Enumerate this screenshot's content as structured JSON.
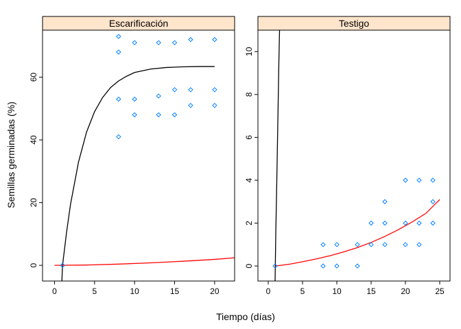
{
  "chart_data": {
    "type": "scatter",
    "xlabel": "Tiempo (días)",
    "ylabel": "Semillas germinadas (%)",
    "colors": {
      "points": "#0080ff",
      "red_curve": "#ff0000",
      "black_curve": "#000000",
      "strip": "#ffe5cc"
    },
    "panels": [
      {
        "strip": "Escarificación",
        "xlim": [
          -1.5,
          22.5
        ],
        "ylim": [
          -5,
          75
        ],
        "xticks": [
          0,
          5,
          10,
          15,
          20
        ],
        "yticks": [
          0,
          20,
          40,
          60
        ],
        "points": [
          [
            1,
            0
          ],
          [
            8,
            73
          ],
          [
            8,
            68
          ],
          [
            8,
            53
          ],
          [
            8,
            41
          ],
          [
            10,
            71
          ],
          [
            10,
            53
          ],
          [
            10,
            48
          ],
          [
            13,
            71
          ],
          [
            13,
            54
          ],
          [
            13,
            48
          ],
          [
            15,
            71
          ],
          [
            15,
            56
          ],
          [
            15,
            48
          ],
          [
            17,
            72
          ],
          [
            17,
            56
          ],
          [
            17,
            51
          ],
          [
            20,
            72
          ],
          [
            20,
            56
          ],
          [
            20,
            51
          ]
        ],
        "black_curve": {
          "x": [
            0.9,
            1.0,
            1.5,
            2,
            3,
            4,
            5,
            6,
            7,
            8,
            9,
            10,
            12,
            14,
            16,
            18,
            20
          ],
          "y": [
            -6,
            0,
            10.5,
            19.5,
            33,
            42.5,
            49,
            53.5,
            56.7,
            58.8,
            60.3,
            61.5,
            62.6,
            63.1,
            63.3,
            63.4,
            63.4
          ]
        },
        "red_curve": {
          "x": [
            0,
            4,
            8,
            12,
            16,
            20,
            22.5
          ],
          "y": [
            0,
            0.1,
            0.4,
            0.8,
            1.3,
            1.9,
            2.4
          ]
        }
      },
      {
        "strip": "Testigo",
        "xlim": [
          -1.5,
          26.5
        ],
        "ylim": [
          -0.7,
          11
        ],
        "xticks": [
          0,
          5,
          10,
          15,
          20,
          25
        ],
        "yticks": [
          0,
          2,
          4,
          6,
          8,
          10
        ],
        "points": [
          [
            1,
            0
          ],
          [
            8,
            1
          ],
          [
            8,
            0
          ],
          [
            10,
            1
          ],
          [
            10,
            0
          ],
          [
            13,
            1
          ],
          [
            13,
            0
          ],
          [
            15,
            2
          ],
          [
            15,
            1
          ],
          [
            17,
            3
          ],
          [
            17,
            2
          ],
          [
            17,
            1
          ],
          [
            20,
            4
          ],
          [
            20,
            2
          ],
          [
            20,
            1
          ],
          [
            22,
            4
          ],
          [
            22,
            2
          ],
          [
            22,
            1
          ],
          [
            24,
            4
          ],
          [
            24,
            3
          ],
          [
            24,
            2
          ]
        ],
        "black_curve": {
          "x": [
            1.0,
            1.1,
            1.25,
            1.4,
            1.55,
            1.65
          ],
          "y": [
            -0.7,
            1.5,
            4,
            6.7,
            9.5,
            11
          ]
        },
        "red_curve": {
          "x": [
            1,
            3,
            5,
            7,
            9,
            11,
            13,
            15,
            17,
            19,
            21,
            23,
            25
          ],
          "y": [
            0,
            0.08,
            0.2,
            0.33,
            0.48,
            0.66,
            0.86,
            1.1,
            1.38,
            1.7,
            2.06,
            2.46,
            3.1
          ]
        }
      }
    ]
  }
}
